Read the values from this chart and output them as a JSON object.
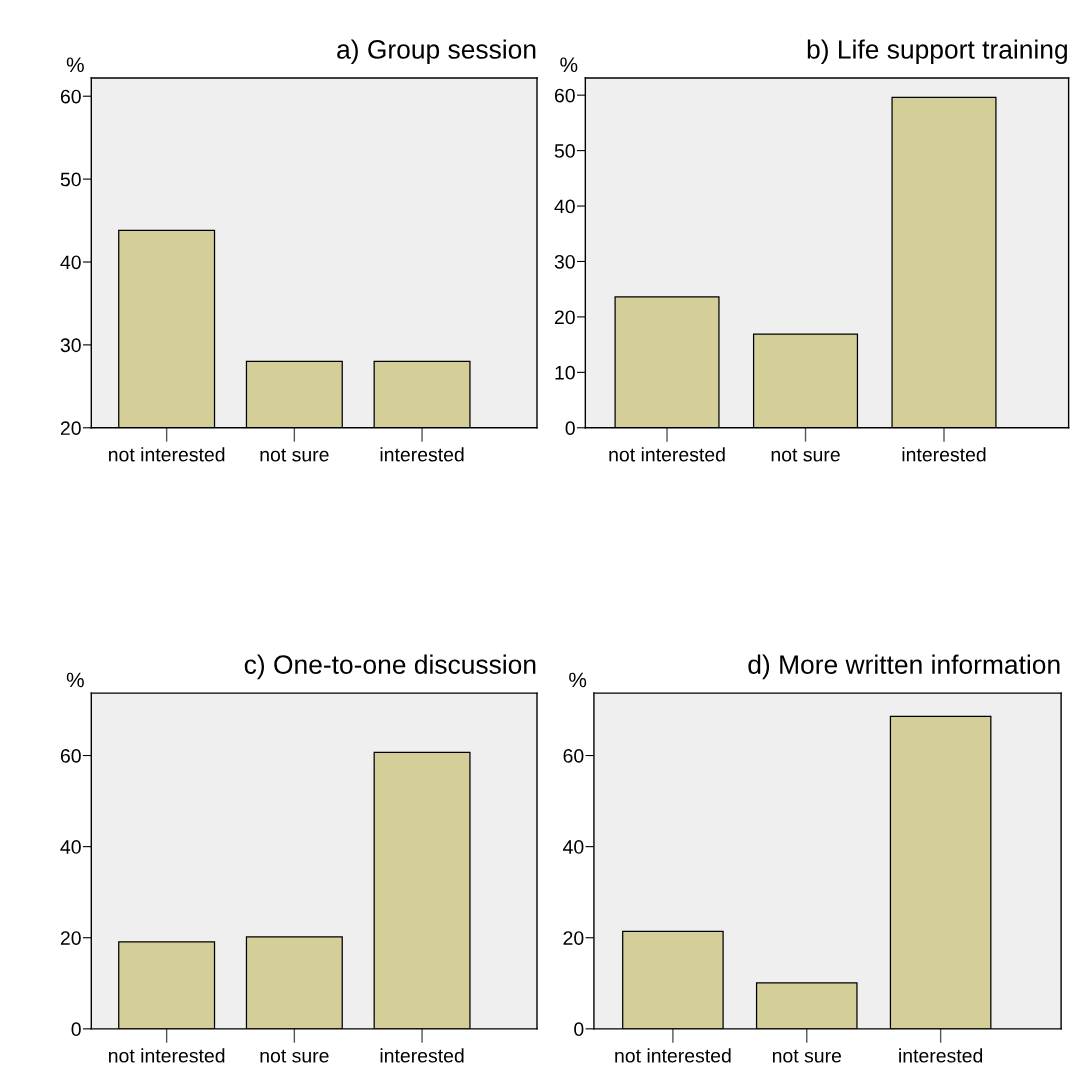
{
  "chart_data": [
    {
      "type": "bar",
      "title": "a) Group session",
      "ylabel": "%",
      "categories": [
        "not interested",
        "not sure",
        "interested"
      ],
      "values": [
        43.8,
        28.0,
        28.0
      ],
      "color": "#d4ce98",
      "ylim": [
        20,
        62.2
      ],
      "yticks": [
        20,
        30,
        40,
        50,
        60
      ],
      "grid": false
    },
    {
      "type": "bar",
      "title": "b) Life support training",
      "ylabel": "%",
      "categories": [
        "not interested",
        "not sure",
        "interested"
      ],
      "values": [
        23.6,
        16.9,
        59.6
      ],
      "color": "#d4ce98",
      "ylim": [
        0,
        63.1
      ],
      "yticks": [
        0,
        10,
        20,
        30,
        40,
        50,
        60
      ],
      "grid": false
    },
    {
      "type": "bar",
      "title": "c) One-to-one discussion",
      "ylabel": "%",
      "categories": [
        "not interested",
        "not sure",
        "interested"
      ],
      "values": [
        19.1,
        20.2,
        60.7
      ],
      "color": "#d4ce98",
      "ylim": [
        0,
        73.7
      ],
      "yticks": [
        0,
        20,
        40,
        60
      ],
      "grid": false
    },
    {
      "type": "bar",
      "title": "d) More written information",
      "ylabel": "%",
      "categories": [
        "not interested",
        "not sure",
        "interested"
      ],
      "values": [
        21.4,
        10.1,
        68.6
      ],
      "color": "#d4ce98",
      "ylim": [
        0,
        73.7
      ],
      "yticks": [
        0,
        20,
        40,
        60
      ],
      "grid": false
    }
  ]
}
